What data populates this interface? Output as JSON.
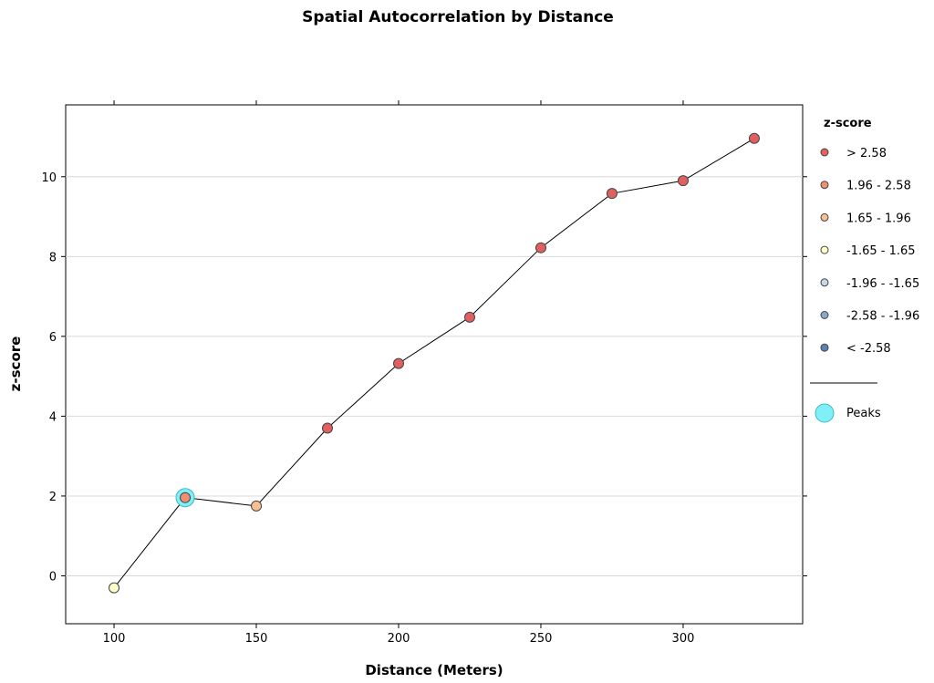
{
  "chart_data": {
    "type": "line",
    "title": "Spatial Autocorrelation by Distance",
    "xlabel": "Distance (Meters)",
    "ylabel": "z-score",
    "xlim": [
      83,
      342
    ],
    "ylim": [
      -1.2,
      11.8
    ],
    "x_ticks": [
      100,
      150,
      200,
      250,
      300
    ],
    "y_ticks": [
      0,
      2,
      4,
      6,
      8,
      10
    ],
    "grid": "horizontal",
    "legend_placement": "right",
    "series": [
      {
        "x": [
          100,
          125,
          150,
          175,
          200,
          225,
          250,
          275,
          300,
          325
        ],
        "y": [
          -0.3,
          1.96,
          1.75,
          3.7,
          5.32,
          6.48,
          8.22,
          9.58,
          9.9,
          10.96
        ],
        "classes": [
          "-1.65 - 1.65",
          "1.96 - 2.58",
          "1.65 - 1.96",
          "> 2.58",
          "> 2.58",
          "> 2.58",
          "> 2.58",
          "> 2.58",
          "> 2.58",
          "> 2.58"
        ]
      }
    ],
    "peaks": [
      {
        "x": 125,
        "y": 1.96
      }
    ],
    "legend": {
      "title": "z-score",
      "items": [
        {
          "label": "> 2.58",
          "color": "#e06060"
        },
        {
          "label": "1.96 - 2.58",
          "color": "#f09070"
        },
        {
          "label": "1.65 - 1.96",
          "color": "#f8c090"
        },
        {
          "label": "-1.65 - 1.65",
          "color": "#ffffc8"
        },
        {
          "label": "-1.96 - -1.65",
          "color": "#c8d8e8"
        },
        {
          "label": "-2.58 - -1.96",
          "color": "#8ca8c8"
        },
        {
          "label": "< -2.58",
          "color": "#5a82b4"
        }
      ],
      "peaks_label": "Peaks",
      "peaks_color": "#80f0f8"
    }
  }
}
